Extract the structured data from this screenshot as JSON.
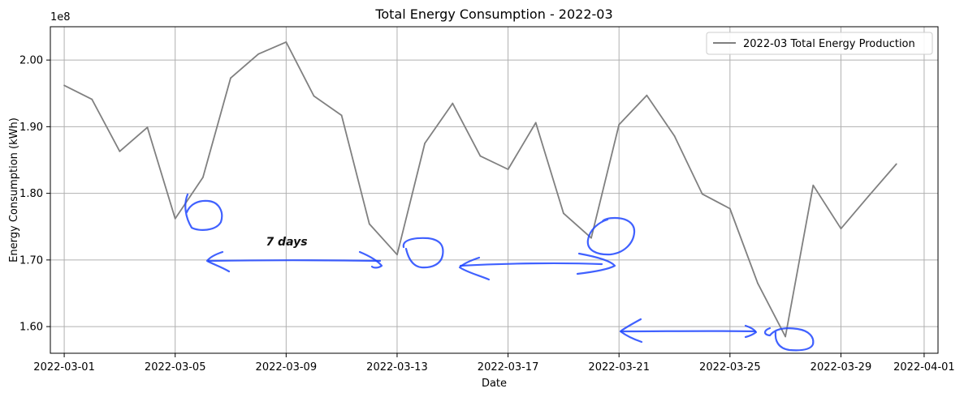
{
  "chart_data": {
    "type": "line",
    "title": "Total Energy Consumption - 2022-03",
    "xlabel": "Date",
    "ylabel": "Energy Consumption (kWh)",
    "y_offset_label": "1e8",
    "xlim": [
      "2022-02-28T12:00",
      "2022-04-01T12:00"
    ],
    "ylim": [
      1.56,
      2.05
    ],
    "y_ticks": [
      1.6,
      1.7,
      1.8,
      1.9,
      2.0
    ],
    "y_tick_labels": [
      "1.60",
      "1.70",
      "1.80",
      "1.90",
      "2.00"
    ],
    "x_ticks": [
      "2022-03-01",
      "2022-03-05",
      "2022-03-09",
      "2022-03-13",
      "2022-03-17",
      "2022-03-21",
      "2022-03-25",
      "2022-03-29",
      "2022-04-01"
    ],
    "x_tick_labels": [
      "2022-03-01",
      "2022-03-05",
      "2022-03-09",
      "2022-03-13",
      "2022-03-17",
      "2022-03-21",
      "2022-03-25",
      "2022-03-29",
      "2022-04-01"
    ],
    "grid": true,
    "legend_position": "top-right",
    "series": [
      {
        "name": "2022-03 Total Energy Production",
        "color": "#808080",
        "x": [
          "2022-03-01",
          "2022-03-02",
          "2022-03-03",
          "2022-03-04",
          "2022-03-05",
          "2022-03-06",
          "2022-03-07",
          "2022-03-08",
          "2022-03-09",
          "2022-03-10",
          "2022-03-11",
          "2022-03-12",
          "2022-03-13",
          "2022-03-14",
          "2022-03-15",
          "2022-03-16",
          "2022-03-17",
          "2022-03-18",
          "2022-03-19",
          "2022-03-20",
          "2022-03-21",
          "2022-03-22",
          "2022-03-23",
          "2022-03-24",
          "2022-03-25",
          "2022-03-26",
          "2022-03-27",
          "2022-03-28",
          "2022-03-29",
          "2022-03-30",
          "2022-03-31"
        ],
        "values": [
          1.962,
          1.941,
          1.863,
          1.899,
          1.762,
          1.824,
          1.973,
          2.009,
          2.027,
          1.946,
          1.917,
          1.754,
          1.708,
          1.875,
          1.935,
          1.856,
          1.836,
          1.906,
          1.77,
          1.733,
          1.903,
          1.947,
          1.886,
          1.799,
          1.777,
          1.665,
          1.585,
          1.812,
          1.747,
          1.796,
          1.844
        ]
      }
    ],
    "annotations": [
      {
        "text": "7  days",
        "color": "#111111"
      }
    ],
    "annotation_color": "#1f45ff"
  }
}
